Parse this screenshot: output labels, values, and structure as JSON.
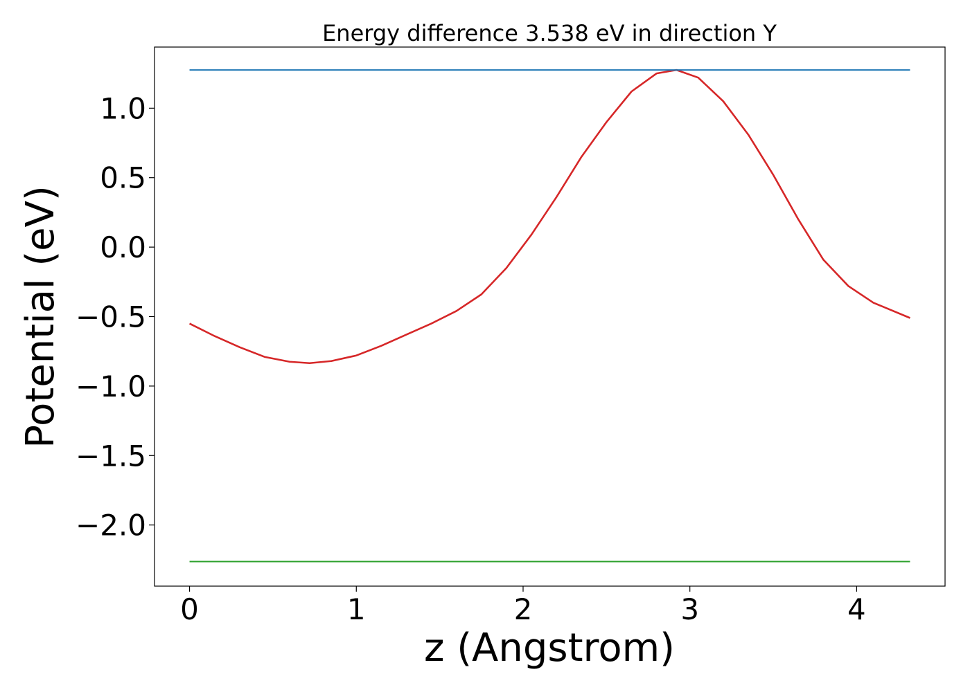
{
  "chart_data": {
    "type": "line",
    "title": "Energy difference 3.538 eV in direction Y",
    "xlabel": "z (Angstrom)",
    "ylabel": "Potential (eV)",
    "xlim": [
      -0.21,
      4.53
    ],
    "ylim": [
      -2.44,
      1.44
    ],
    "xticks": [
      0,
      1,
      2,
      3,
      4
    ],
    "xtick_labels": [
      "0",
      "1",
      "2",
      "3",
      "4"
    ],
    "yticks": [
      1.0,
      0.5,
      0.0,
      -0.5,
      -1.0,
      -1.5,
      -2.0
    ],
    "ytick_labels": [
      "1.0",
      "0.5",
      "0.0",
      "−0.5",
      "−1.0",
      "−1.5",
      "−2.0"
    ],
    "grid": false,
    "series": [
      {
        "color": "#d62728",
        "x": [
          0.0,
          0.15,
          0.3,
          0.45,
          0.6,
          0.72,
          0.85,
          1.0,
          1.15,
          1.3,
          1.45,
          1.6,
          1.75,
          1.9,
          2.05,
          2.2,
          2.35,
          2.5,
          2.65,
          2.8,
          2.92,
          3.05,
          3.2,
          3.35,
          3.5,
          3.65,
          3.8,
          3.95,
          4.1,
          4.32
        ],
        "y": [
          -0.55,
          -0.64,
          -0.72,
          -0.79,
          -0.825,
          -0.835,
          -0.82,
          -0.78,
          -0.71,
          -0.63,
          -0.55,
          -0.46,
          -0.34,
          -0.15,
          0.09,
          0.36,
          0.65,
          0.9,
          1.12,
          1.25,
          1.275,
          1.22,
          1.05,
          0.81,
          0.52,
          0.2,
          -0.09,
          -0.28,
          -0.4,
          -0.51
        ]
      },
      {
        "color": "#1f77b4",
        "x": [
          0.0,
          4.32
        ],
        "y": [
          1.275,
          1.275
        ]
      },
      {
        "color": "#2ca02c",
        "x": [
          0.0,
          4.32
        ],
        "y": [
          -2.263,
          -2.263
        ]
      }
    ]
  }
}
